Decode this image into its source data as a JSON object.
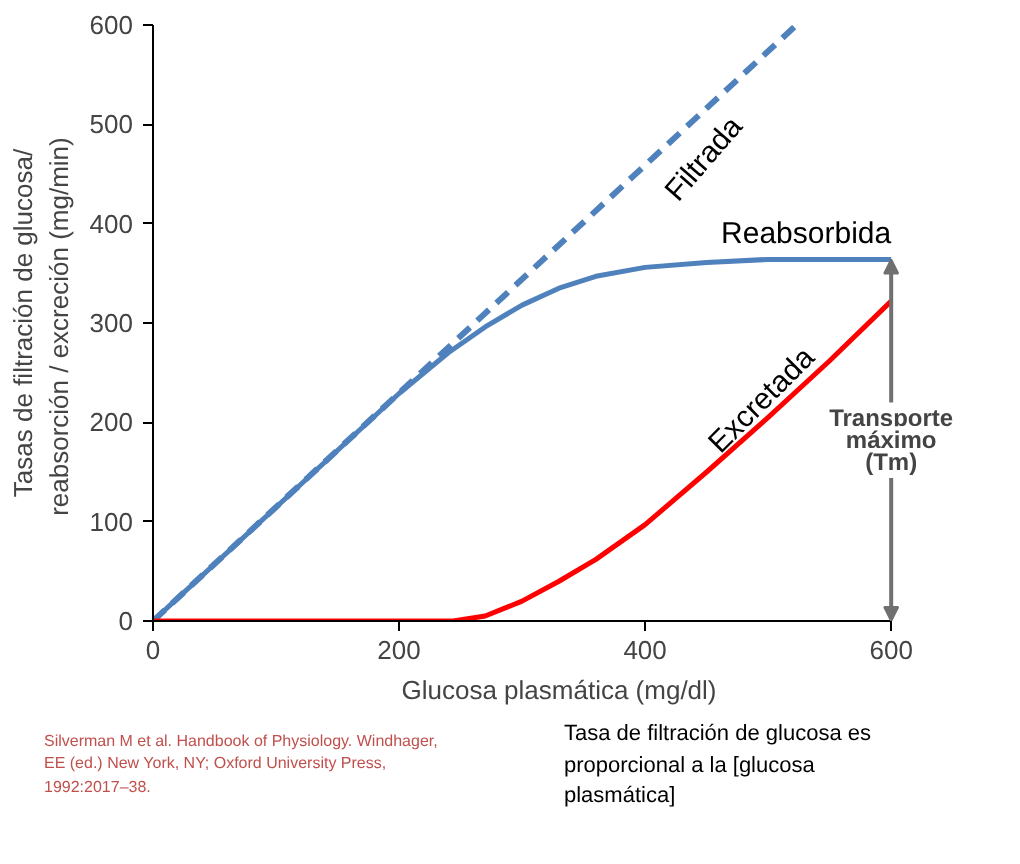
{
  "chart_data": {
    "type": "line",
    "xlabel": "Glucosa plasmática (mg/dl)",
    "ylabel": "Tasas de filtración de glucosa/\nreabsorción / excreción  (mg/min)",
    "xlim": [
      0,
      600
    ],
    "ylim": [
      0,
      600
    ],
    "xticks": [
      0,
      200,
      400,
      600
    ],
    "yticks": [
      0,
      100,
      200,
      300,
      400,
      500,
      600
    ],
    "grid": false,
    "legend": false,
    "series": [
      {
        "name": "Filtrada",
        "color": "#4f81bd",
        "line_style": "dashed",
        "x": [
          0,
          523
        ],
        "values": [
          0,
          600
        ]
      },
      {
        "name": "Reabsorbida",
        "color": "#4f81bd",
        "line_style": "solid",
        "x": [
          0,
          200,
          240,
          270,
          300,
          330,
          360,
          400,
          450,
          500,
          600
        ],
        "values": [
          0,
          229,
          270,
          296,
          318,
          335,
          347,
          356,
          361,
          364,
          364
        ]
      },
      {
        "name": "Excretada",
        "color": "#ff0000",
        "line_style": "solid",
        "x": [
          0,
          244,
          270,
          300,
          330,
          360,
          400,
          450,
          500,
          550,
          600
        ],
        "values": [
          0,
          0,
          5,
          20,
          40,
          62,
          97,
          150,
          205,
          262,
          322
        ]
      }
    ],
    "annotations": [
      {
        "text": "Transporte máximo (Tm)",
        "x": 600,
        "y": 364
      },
      "Silverman M et al. Handbook of Physiology. Windhager, EE (ed.) New York, NY; Oxford University Press, 1992:2017–38.",
      "Tasa de filtración de glucosa es proporcional a la [glucosa plasmática]"
    ]
  }
}
